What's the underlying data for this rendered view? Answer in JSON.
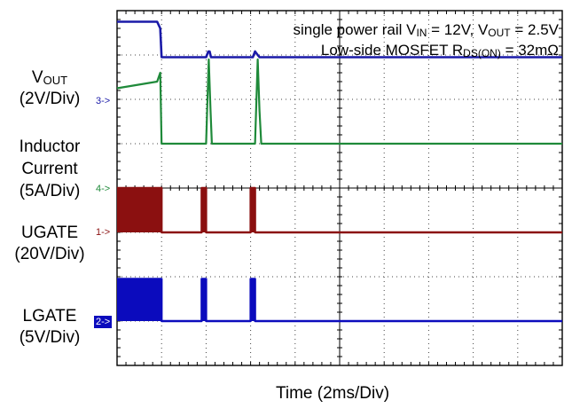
{
  "annotation": {
    "line1": {
      "a": "single power rail V",
      "b": "IN",
      "c": " = 12V, V",
      "d": "OUT",
      "e": " = 2.5V"
    },
    "line2": {
      "a": "Low-side MOSFET R",
      "b": "DS(ON)",
      "c": " = 32mΩ"
    }
  },
  "channel_labels": {
    "vout": {
      "main": "V",
      "sub": "OUT",
      "scale": "(2V/Div)"
    },
    "inductor": {
      "l1": "Inductor",
      "l2": "Current",
      "scale": "(5A/Div)"
    },
    "ugate": {
      "main": "UGATE",
      "scale": "(20V/Div)"
    },
    "lgate": {
      "main": "LGATE",
      "scale": "(5V/Div)"
    }
  },
  "markers": {
    "ch3": "3->",
    "ch4": "4->",
    "ch1": "1->",
    "ch2": "2->"
  },
  "xlabel": "Time  (2ms/Div)",
  "colors": {
    "vout": "#1a1aa8",
    "inductor": "#1f8a3a",
    "ugate": "#8b1010",
    "lgate": "#0b0bbd",
    "grid": "#444444"
  },
  "chart_data": {
    "type": "line",
    "title": "",
    "xlabel": "Time  (2ms/Div)",
    "x_unit": "div",
    "xlim": [
      0,
      10
    ],
    "ylim": [
      -4,
      4
    ],
    "grid": true,
    "series": [
      {
        "name": "VOUT",
        "scale": "2V/Div",
        "x": [
          0,
          0.9,
          0.97,
          1.0,
          2.0,
          2.05,
          2.08,
          2.11,
          2.2,
          3.05,
          3.1,
          3.16,
          3.2,
          10
        ],
        "y": [
          3.75,
          3.75,
          3.6,
          2.95,
          2.95,
          3.08,
          3.08,
          2.95,
          2.95,
          2.95,
          3.08,
          3.0,
          2.95,
          2.95
        ]
      },
      {
        "name": "Inductor Current",
        "scale": "5A/Div",
        "x": [
          0,
          0.9,
          0.97,
          1.0,
          1.9,
          2.0,
          2.06,
          2.1,
          2.13,
          3.0,
          3.1,
          3.16,
          3.2,
          3.24,
          10
        ],
        "y": [
          2.25,
          2.4,
          2.6,
          1.0,
          1.0,
          1.0,
          2.9,
          1.75,
          1.0,
          1.0,
          1.0,
          2.9,
          1.75,
          1.0,
          1.0
        ]
      },
      {
        "name": "UGATE",
        "scale": "20V/Div",
        "x": [
          0,
          1.0,
          1.0,
          1.9,
          1.9,
          2.0,
          2.0,
          3.0,
          3.0,
          3.1,
          3.1,
          10
        ],
        "y": [
          0,
          0,
          -1.0,
          -1.0,
          0,
          0,
          -1.0,
          -1.0,
          0,
          0,
          -1.0,
          -1.0
        ]
      },
      {
        "name": "LGATE",
        "scale": "5V/Div",
        "x": [
          0,
          1.0,
          1.0,
          1.9,
          1.9,
          2.0,
          2.0,
          3.0,
          3.0,
          3.1,
          3.1,
          10
        ],
        "y": [
          -2.05,
          -2.05,
          -3.0,
          -3.0,
          -2.05,
          -2.05,
          -3.0,
          -3.0,
          -2.05,
          -2.05,
          -3.0,
          -3.0
        ]
      }
    ]
  }
}
